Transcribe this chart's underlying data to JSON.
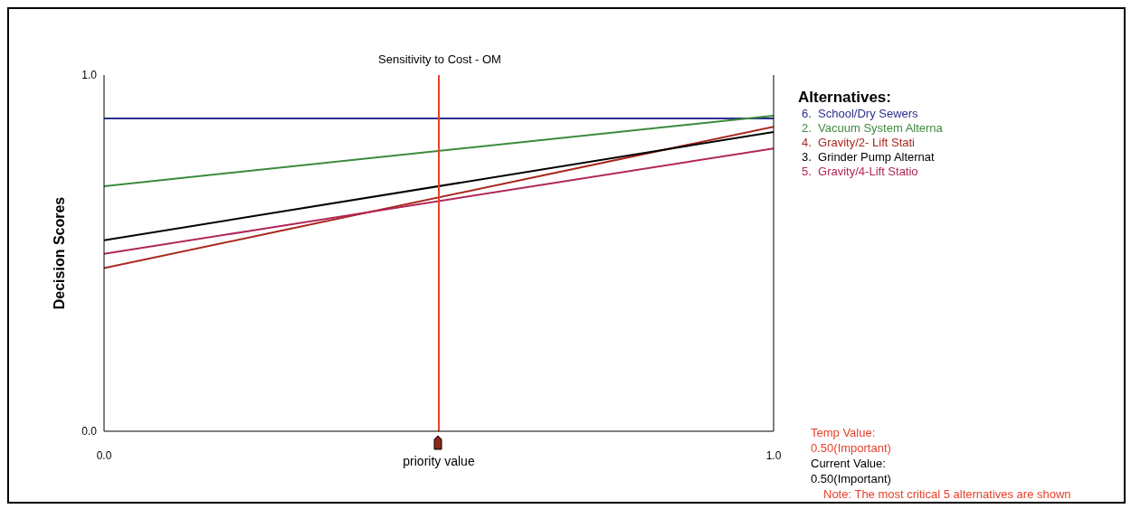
{
  "chart_data": {
    "type": "line",
    "title": "Sensitivity to Cost - OM",
    "xlabel": "priority value",
    "ylabel": "Decision Scores",
    "legend_title": "Alternatives:",
    "x": [
      0,
      1
    ],
    "series": [
      {
        "name": "6.  School/Dry Sewers",
        "color": "#2a2f8c",
        "values": [
          0.878,
          0.878
        ]
      },
      {
        "name": "2.  Vacuum System Alterna",
        "color": "#3d8a3d",
        "values": [
          0.688,
          0.886
        ]
      },
      {
        "name": "4.  Gravity/2- Lift Stati",
        "color": "#a8281e",
        "values": [
          0.458,
          0.855
        ]
      },
      {
        "name": "3.  Grinder Pump Alternat",
        "color": "#000000",
        "values": [
          0.536,
          0.84
        ]
      },
      {
        "name": "5.  Gravity/4-Lift Statio",
        "color": "#b02658",
        "values": [
          0.498,
          0.794
        ]
      }
    ],
    "xlim": [
      0,
      1
    ],
    "xticks": [
      {
        "value": 0,
        "label": "0.0"
      },
      {
        "value": 1,
        "label": "1.0"
      }
    ],
    "ylim": [
      0,
      1
    ],
    "yticks": [
      {
        "value": 0,
        "label": "0.0"
      },
      {
        "value": 1,
        "label": "1.0"
      }
    ],
    "ref_lines": [
      {
        "axis": "x",
        "value": 0.5,
        "color": "#e8402a"
      }
    ],
    "annotations": [
      "Temp Value:",
      "0.50(Important)",
      "Current Value:",
      "0.50(Important)",
      "Note: The most critical 5 alternatives are shown"
    ],
    "grid": false,
    "legend": "top right",
    "marker": "none",
    "line_style": "solid"
  }
}
